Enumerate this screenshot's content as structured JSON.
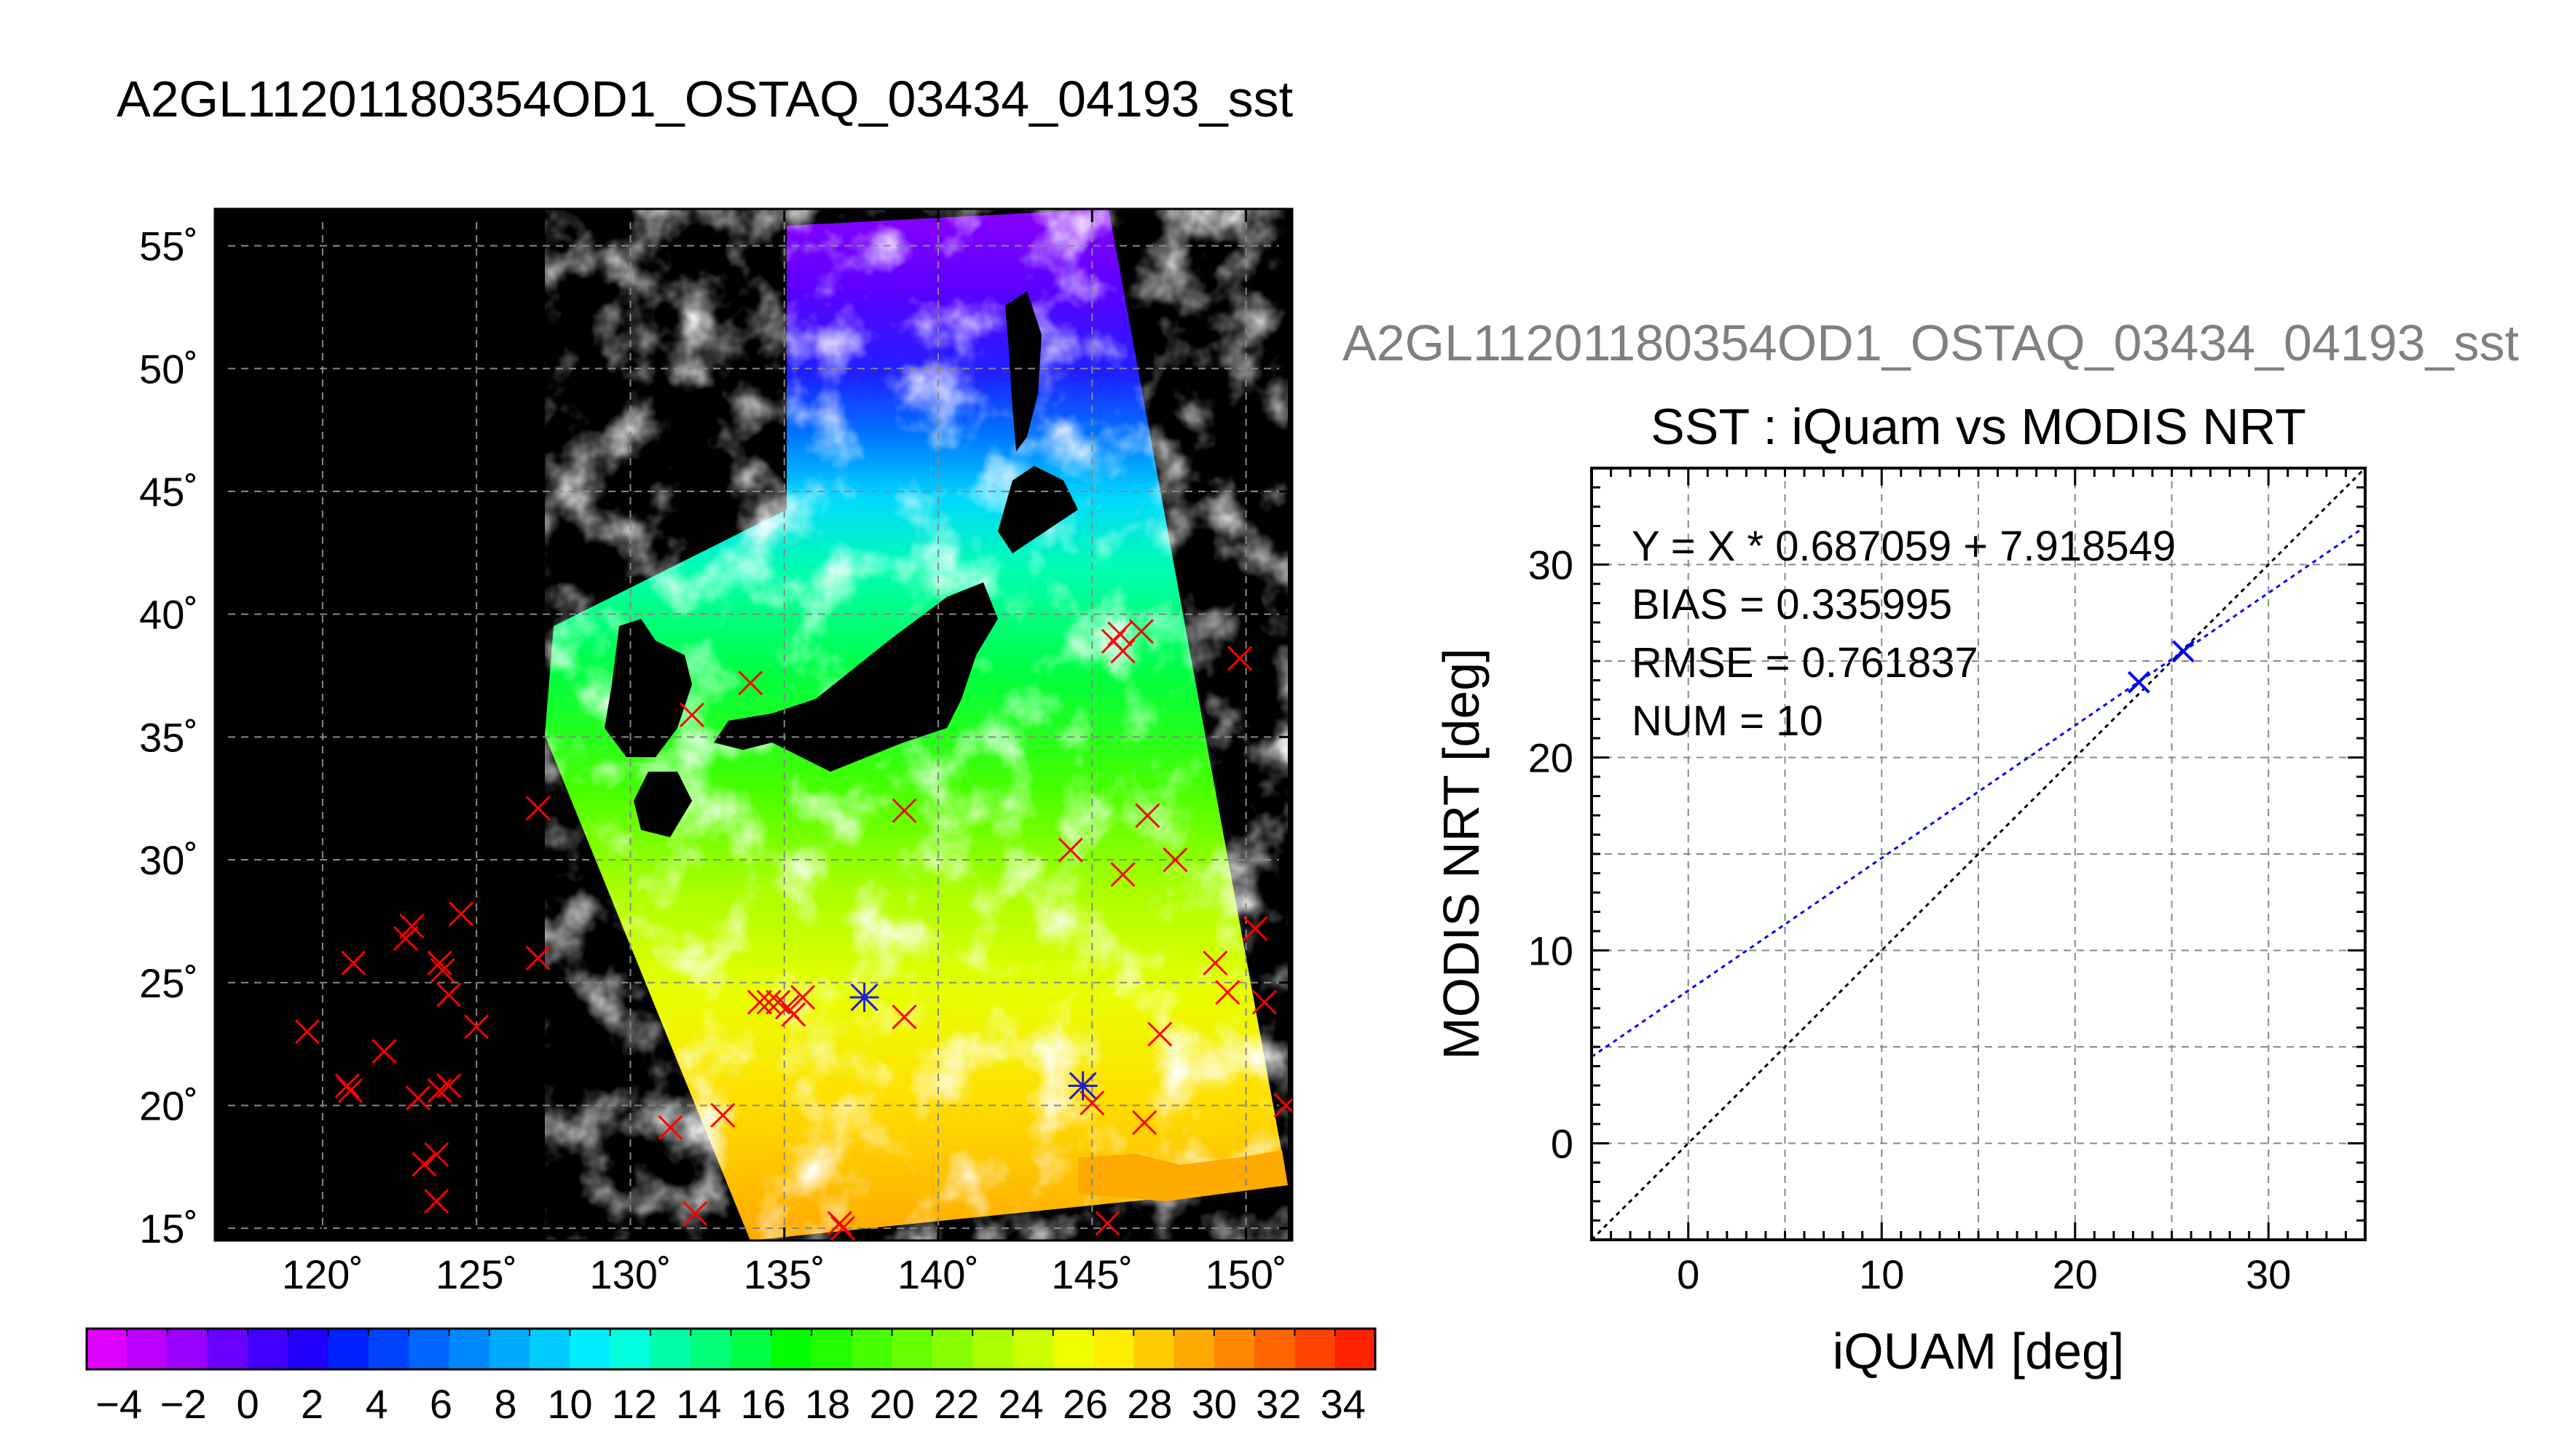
{
  "page": {
    "main_title": "A2GL11201180354OD1_OSTAQ_03434_04193_sst",
    "right_header": "A2GL11201180354OD1_OSTAQ_03434_04193_sst"
  },
  "colors": {
    "land": "#000000",
    "cloud": "#ffffff",
    "match_marker": "#ff0000",
    "highlight_marker": "#2222cc",
    "fit_line": "#0000ff",
    "one_to_one_line": "#000000",
    "grid": "#888888"
  },
  "map": {
    "lon_ticks": [
      "120˚",
      "125˚",
      "130˚",
      "135˚",
      "140˚",
      "145˚",
      "150˚"
    ],
    "lat_ticks": [
      "15˚",
      "20˚",
      "25˚",
      "30˚",
      "35˚",
      "40˚",
      "45˚",
      "50˚",
      "55˚"
    ],
    "lon_range": [
      116.5,
      151.5
    ],
    "lat_range": [
      14.5,
      56.5
    ],
    "colorbar": {
      "tick_labels": [
        "−4",
        "−2",
        "0",
        "2",
        "4",
        "6",
        "8",
        "10",
        "12",
        "14",
        "16",
        "18",
        "20",
        "22",
        "24",
        "26",
        "28",
        "30",
        "32",
        "34"
      ],
      "range": [
        -5,
        35
      ],
      "colors": [
        "#dd00ff",
        "#bb00ff",
        "#9900ff",
        "#6a00ff",
        "#4400ff",
        "#2200ff",
        "#0022ff",
        "#0044ff",
        "#0066ff",
        "#0088ff",
        "#00aaff",
        "#00ccff",
        "#00eeff",
        "#00ffdd",
        "#00ffaa",
        "#00ff77",
        "#00ff44",
        "#00ff00",
        "#22ff00",
        "#44ff00",
        "#66ff00",
        "#88ff00",
        "#aaff00",
        "#ccff00",
        "#eeff00",
        "#ffee00",
        "#ffcc00",
        "#ffaa00",
        "#ff8800",
        "#ff6600",
        "#ff4400",
        "#ff2200"
      ]
    },
    "matchups": [
      {
        "lon": 119.5,
        "lat": 23.0
      },
      {
        "lon": 121.0,
        "lat": 25.8
      },
      {
        "lon": 120.8,
        "lat": 20.8
      },
      {
        "lon": 120.9,
        "lat": 20.6
      },
      {
        "lon": 122.0,
        "lat": 22.2
      },
      {
        "lon": 122.7,
        "lat": 26.8
      },
      {
        "lon": 122.9,
        "lat": 27.3
      },
      {
        "lon": 123.1,
        "lat": 20.3
      },
      {
        "lon": 123.3,
        "lat": 17.6
      },
      {
        "lon": 123.7,
        "lat": 18.0
      },
      {
        "lon": 123.8,
        "lat": 25.8
      },
      {
        "lon": 123.9,
        "lat": 25.5
      },
      {
        "lon": 124.1,
        "lat": 24.5
      },
      {
        "lon": 123.8,
        "lat": 20.6
      },
      {
        "lon": 124.1,
        "lat": 20.8
      },
      {
        "lon": 123.7,
        "lat": 16.1
      },
      {
        "lon": 124.5,
        "lat": 27.8
      },
      {
        "lon": 125.0,
        "lat": 23.2
      },
      {
        "lon": 127.0,
        "lat": 32.1
      },
      {
        "lon": 127.0,
        "lat": 26.0
      },
      {
        "lon": 131.3,
        "lat": 19.1
      },
      {
        "lon": 132.0,
        "lat": 35.9
      },
      {
        "lon": 132.1,
        "lat": 15.6
      },
      {
        "lon": 133.0,
        "lat": 19.6
      },
      {
        "lon": 133.9,
        "lat": 37.2
      },
      {
        "lon": 134.2,
        "lat": 24.2
      },
      {
        "lon": 134.5,
        "lat": 24.2
      },
      {
        "lon": 134.8,
        "lat": 24.2
      },
      {
        "lon": 135.1,
        "lat": 24.0
      },
      {
        "lon": 135.3,
        "lat": 23.7
      },
      {
        "lon": 135.6,
        "lat": 24.4
      },
      {
        "lon": 136.8,
        "lat": 15.2
      },
      {
        "lon": 136.9,
        "lat": 15.0
      },
      {
        "lon": 137.6,
        "lat": 24.4
      },
      {
        "lon": 138.9,
        "lat": 32.0
      },
      {
        "lon": 138.9,
        "lat": 23.6
      },
      {
        "lon": 144.3,
        "lat": 30.4
      },
      {
        "lon": 144.7,
        "lat": 20.8
      },
      {
        "lon": 145.0,
        "lat": 20.1
      },
      {
        "lon": 145.5,
        "lat": 15.2
      },
      {
        "lon": 145.7,
        "lat": 38.9
      },
      {
        "lon": 145.9,
        "lat": 39.2
      },
      {
        "lon": 146.0,
        "lat": 38.5
      },
      {
        "lon": 146.0,
        "lat": 29.4
      },
      {
        "lon": 146.6,
        "lat": 39.3
      },
      {
        "lon": 146.7,
        "lat": 19.3
      },
      {
        "lon": 146.8,
        "lat": 31.8
      },
      {
        "lon": 147.2,
        "lat": 22.9
      },
      {
        "lon": 147.7,
        "lat": 30.0
      },
      {
        "lon": 149.0,
        "lat": 25.8
      },
      {
        "lon": 149.4,
        "lat": 24.6
      },
      {
        "lon": 149.8,
        "lat": 38.2
      },
      {
        "lon": 150.3,
        "lat": 27.2
      },
      {
        "lon": 150.6,
        "lat": 24.2
      },
      {
        "lon": 151.3,
        "lat": 20.0
      }
    ],
    "highlights": [
      {
        "lon": 137.6,
        "lat": 24.4
      },
      {
        "lon": 144.7,
        "lat": 20.8
      }
    ]
  },
  "chart_data": {
    "type": "scatter",
    "title": "SST : iQuam vs MODIS NRT",
    "xlabel": "iQUAM [deg]",
    "ylabel": "MODIS NRT [deg]",
    "xlim": [
      -5,
      35
    ],
    "ylim": [
      -5,
      35
    ],
    "x_ticks": [
      "0",
      "10",
      "20",
      "30"
    ],
    "y_ticks": [
      "0",
      "10",
      "20",
      "30"
    ],
    "grid": true,
    "points": [
      {
        "x": 23.3,
        "y": 23.9
      },
      {
        "x": 25.6,
        "y": 25.5
      }
    ],
    "fit": {
      "slope": 0.687059,
      "intercept": 7.918549
    },
    "stats": {
      "equation": "Y = X * 0.687059 + 7.918549",
      "bias": "BIAS = 0.335995",
      "rmse": "RMSE = 0.761837",
      "num": "NUM = 10"
    }
  }
}
